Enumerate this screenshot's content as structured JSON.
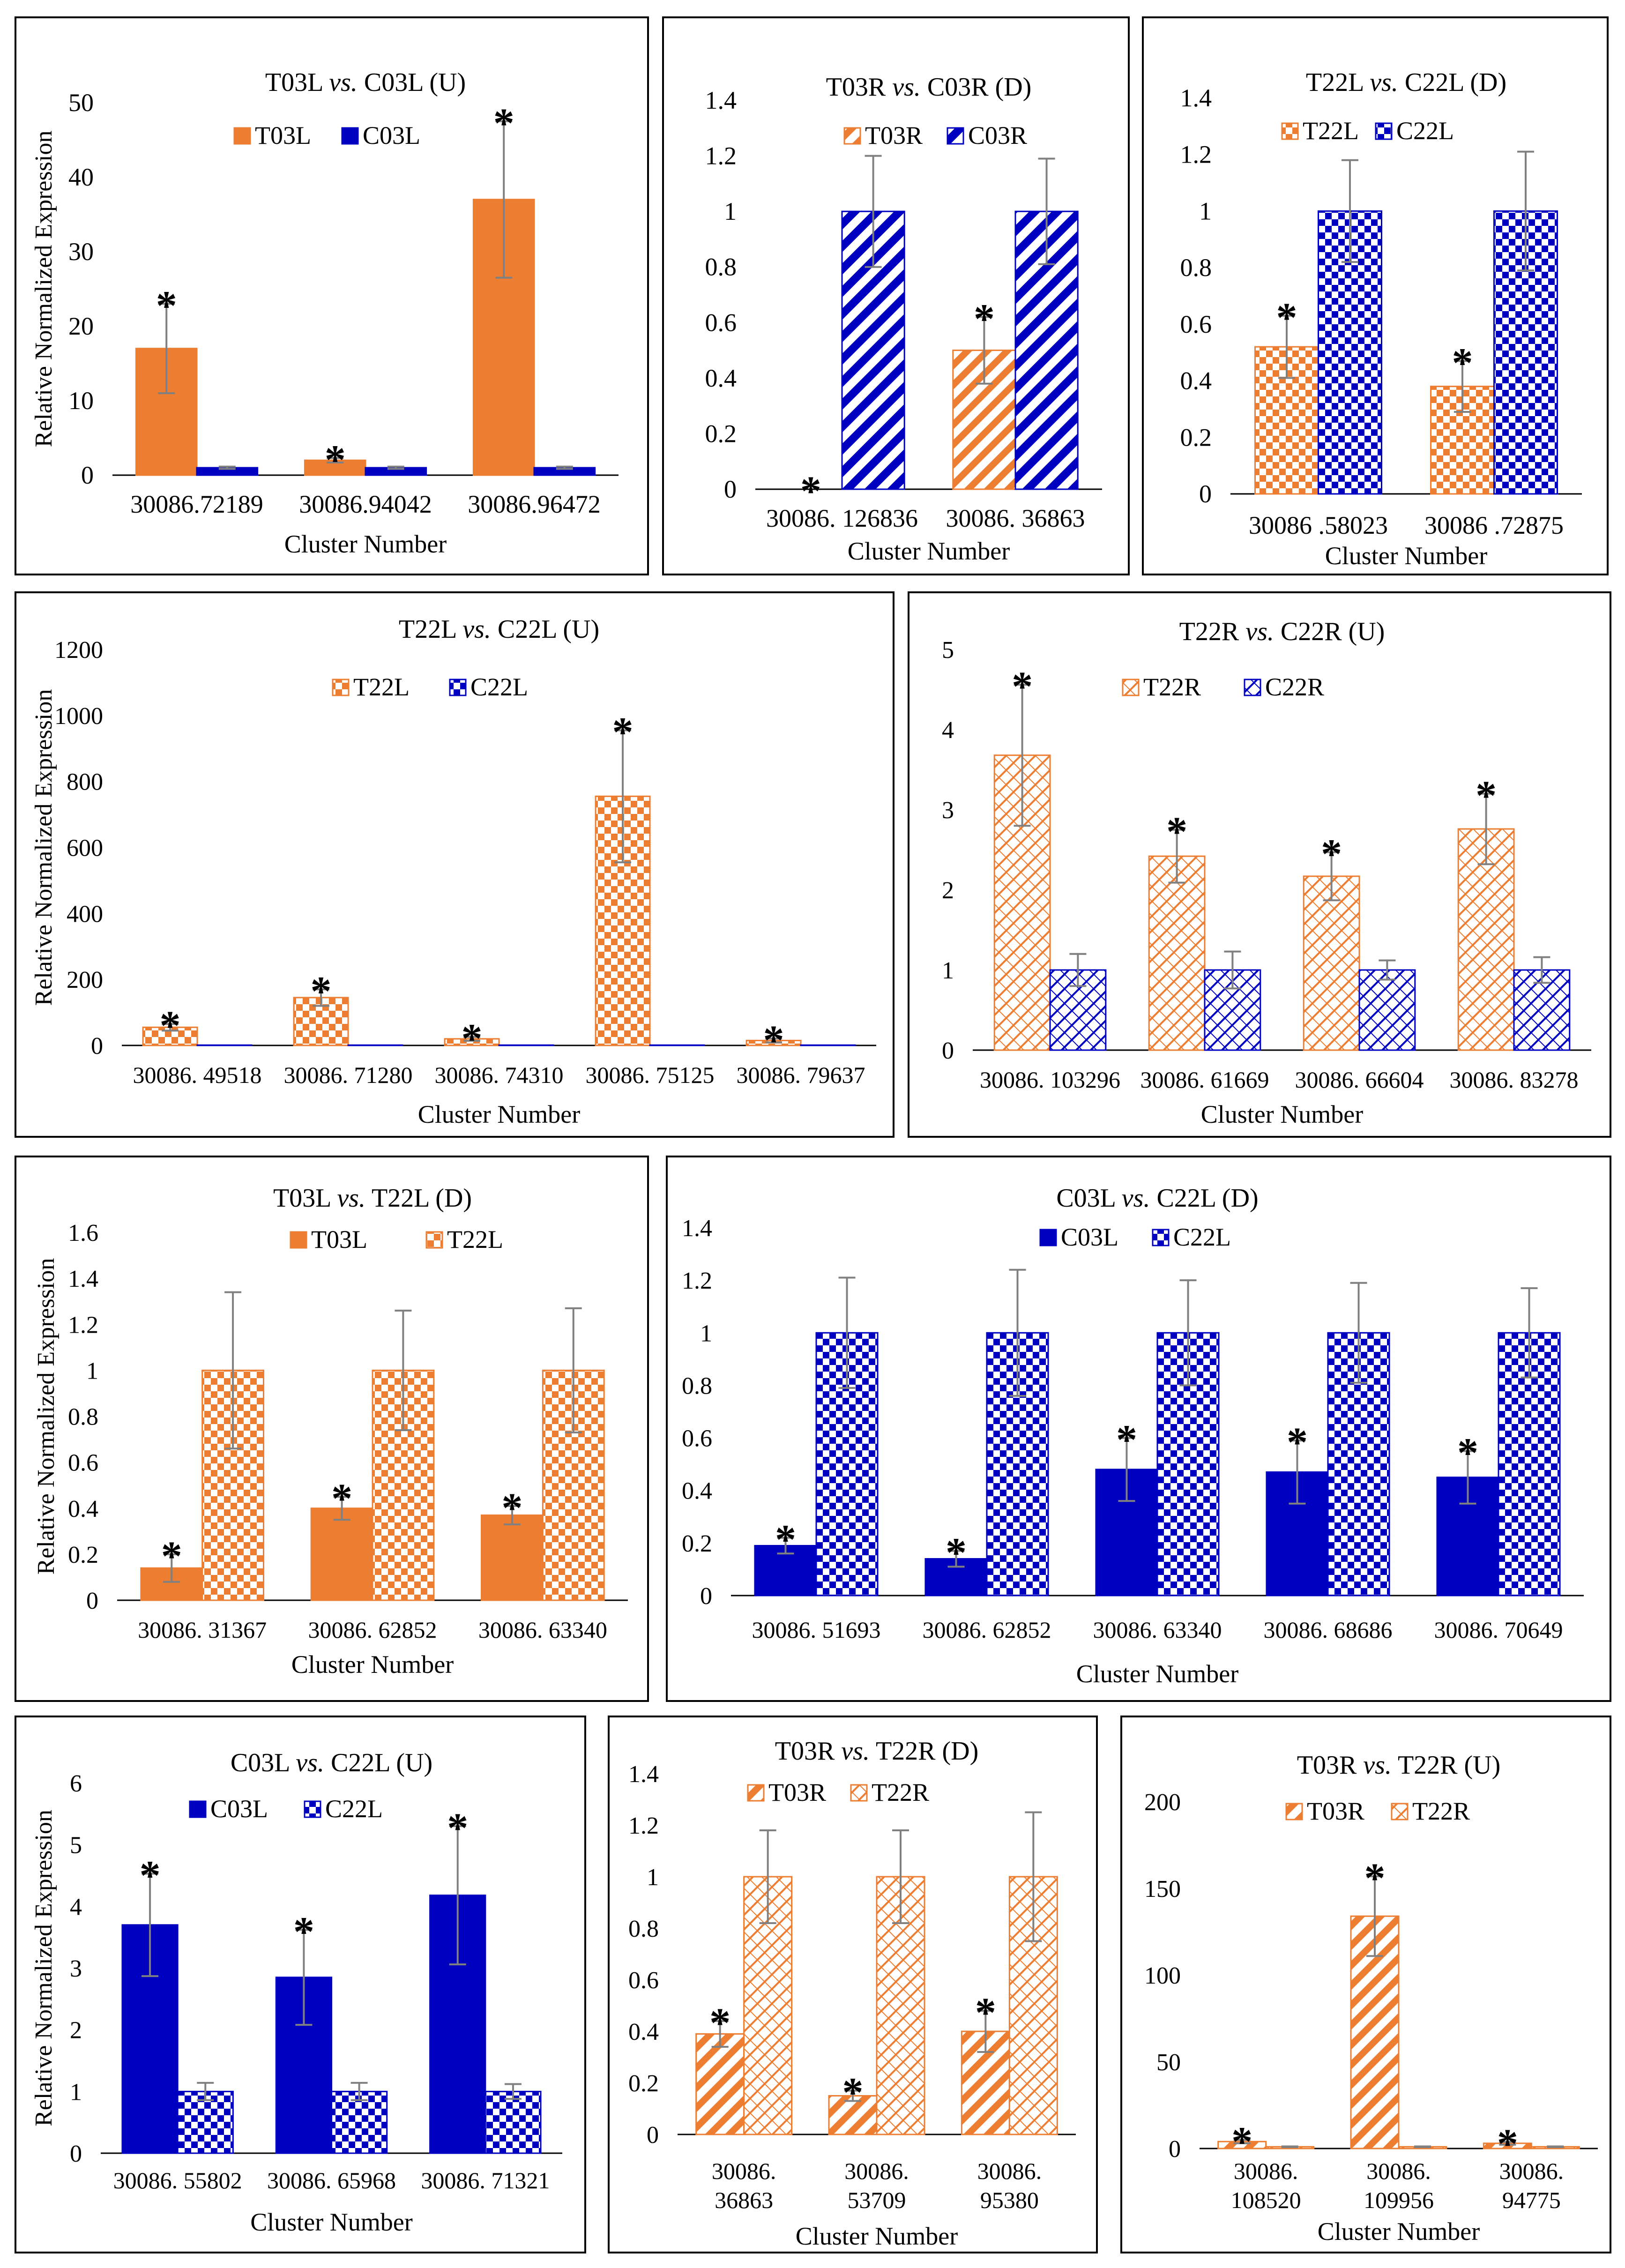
{
  "colors": {
    "orange": "#ED7D31",
    "blue": "#0000C0",
    "error_bar": "#808080"
  },
  "chart_data": [
    {
      "id": "p1",
      "type": "bar",
      "title": "T03L vs. C03L (U)",
      "ylabel": "Relative Normalized Expression",
      "xlabel": "Cluster Number",
      "ylim": [
        0,
        50
      ],
      "yticks": [
        "0",
        "10",
        "20",
        "30",
        "40",
        "50"
      ],
      "categories": [
        [
          "30086.72189"
        ],
        [
          "30086.94042"
        ],
        [
          "30086.96472"
        ]
      ],
      "series": [
        {
          "name": "T03L",
          "color": "orange",
          "pattern": "solid",
          "values": [
            17,
            2,
            37
          ],
          "errors": [
            6,
            0.3,
            10.5
          ],
          "significant": [
            true,
            true,
            true
          ]
        },
        {
          "name": "C03L",
          "color": "blue",
          "pattern": "solid",
          "values": [
            1,
            1,
            1
          ],
          "errors": [
            0.15,
            0.15,
            0.15
          ],
          "significant": [
            false,
            false,
            false
          ]
        }
      ]
    },
    {
      "id": "p2",
      "type": "bar",
      "title": "T03R vs. C03R (D)",
      "ylabel": "",
      "xlabel": "Cluster Number",
      "ylim": [
        0,
        1.4
      ],
      "yticks": [
        "0",
        "0.2",
        "0.4",
        "0.6",
        "0.8",
        "1",
        "1.2",
        "1.4"
      ],
      "categories": [
        [
          "30086. 126836"
        ],
        [
          "30086. 36863"
        ]
      ],
      "series": [
        {
          "name": "T03R",
          "color": "orange",
          "pattern": "diag-wide",
          "values": [
            0,
            0.5
          ],
          "errors": [
            0,
            0.12
          ],
          "significant": [
            true,
            true
          ]
        },
        {
          "name": "C03R",
          "color": "blue",
          "pattern": "diag-bold",
          "values": [
            1,
            1
          ],
          "errors": [
            0.2,
            0.19
          ],
          "significant": [
            false,
            false
          ]
        }
      ]
    },
    {
      "id": "p3",
      "type": "bar",
      "title": "T22L vs. C22L (D)",
      "ylabel": "",
      "xlabel": "Cluster Number",
      "ylim": [
        0,
        1.4
      ],
      "yticks": [
        "0",
        "0.2",
        "0.4",
        "0.6",
        "0.8",
        "1",
        "1.2",
        "1.4"
      ],
      "categories": [
        [
          "30086 .58023"
        ],
        [
          "30086 .72875"
        ]
      ],
      "series": [
        {
          "name": "T22L",
          "color": "orange",
          "pattern": "check",
          "values": [
            0.52,
            0.38
          ],
          "errors": [
            0.11,
            0.09
          ],
          "significant": [
            true,
            true
          ]
        },
        {
          "name": "C22L",
          "color": "blue",
          "pattern": "check",
          "values": [
            1,
            1
          ],
          "errors": [
            0.18,
            0.21
          ],
          "significant": [
            false,
            false
          ]
        }
      ]
    },
    {
      "id": "p4",
      "type": "bar",
      "title": "T22L vs. C22L (U)",
      "ylabel": "Relative Normalized Expression",
      "xlabel": "Cluster Number",
      "ylim": [
        0,
        1200
      ],
      "yticks": [
        "0",
        "200",
        "400",
        "600",
        "800",
        "1000",
        "1200"
      ],
      "categories": [
        [
          "30086. 49518"
        ],
        [
          "30086. 71280"
        ],
        [
          "30086. 74310"
        ],
        [
          "30086. 75125"
        ],
        [
          "30086. 79637"
        ]
      ],
      "series": [
        {
          "name": "T22L",
          "color": "orange",
          "pattern": "check",
          "values": [
            55,
            145,
            20,
            755,
            15
          ],
          "errors": [
            10,
            25,
            6,
            200,
            6
          ],
          "significant": [
            true,
            true,
            true,
            true,
            true
          ]
        },
        {
          "name": "C22L",
          "color": "blue",
          "pattern": "check",
          "values": [
            1,
            1,
            1,
            1,
            1
          ],
          "errors": [
            0,
            0,
            0,
            0,
            0
          ],
          "significant": [
            false,
            false,
            false,
            false,
            false
          ]
        }
      ]
    },
    {
      "id": "p5",
      "type": "bar",
      "title": "T22R vs. C22R (U)",
      "ylabel": "",
      "xlabel": "Cluster Number",
      "ylim": [
        0,
        5
      ],
      "yticks": [
        "0",
        "1",
        "2",
        "3",
        "4",
        "5"
      ],
      "categories": [
        [
          "30086. 103296"
        ],
        [
          "30086. 61669"
        ],
        [
          "30086. 66604"
        ],
        [
          "30086. 83278"
        ]
      ],
      "series": [
        {
          "name": "T22R",
          "color": "orange",
          "pattern": "diag-thin",
          "values": [
            3.68,
            2.42,
            2.17,
            2.76
          ],
          "errors": [
            0.88,
            0.33,
            0.3,
            0.44
          ],
          "significant": [
            true,
            true,
            true,
            true
          ]
        },
        {
          "name": "C22R",
          "color": "blue",
          "pattern": "diag-thin",
          "values": [
            1,
            1,
            1,
            1
          ],
          "errors": [
            0.2,
            0.23,
            0.12,
            0.16
          ],
          "significant": [
            false,
            false,
            false,
            false
          ]
        }
      ]
    },
    {
      "id": "p6",
      "type": "bar",
      "title": "T03L vs. T22L (D)",
      "ylabel": "Relative Normalized Expression",
      "xlabel": "Cluster Number",
      "ylim": [
        0,
        1.6
      ],
      "yticks": [
        "0",
        "0.2",
        "0.4",
        "0.6",
        "0.8",
        "1",
        "1.2",
        "1.4",
        "1.6"
      ],
      "categories": [
        [
          "30086. 31367"
        ],
        [
          "30086. 62852"
        ],
        [
          "30086. 63340"
        ]
      ],
      "series": [
        {
          "name": "T03L",
          "color": "orange",
          "pattern": "solid",
          "values": [
            0.14,
            0.4,
            0.37
          ],
          "errors": [
            0.06,
            0.05,
            0.04
          ],
          "significant": [
            true,
            true,
            true
          ]
        },
        {
          "name": "T22L",
          "color": "orange",
          "pattern": "check",
          "values": [
            1,
            1,
            1
          ],
          "errors": [
            0.34,
            0.26,
            0.27
          ],
          "significant": [
            false,
            false,
            false
          ]
        }
      ]
    },
    {
      "id": "p7",
      "type": "bar",
      "title": "C03L vs. C22L (D)",
      "ylabel": "",
      "xlabel": "Cluster Number",
      "ylim": [
        0,
        1.4
      ],
      "yticks": [
        "0",
        "0.2",
        "0.4",
        "0.6",
        "0.8",
        "1",
        "1.2",
        "1.4"
      ],
      "categories": [
        [
          "30086. 51693"
        ],
        [
          "30086. 62852"
        ],
        [
          "30086. 63340"
        ],
        [
          "30086. 68686"
        ],
        [
          "30086. 70649"
        ]
      ],
      "series": [
        {
          "name": "C03L",
          "color": "blue",
          "pattern": "solid",
          "values": [
            0.19,
            0.14,
            0.48,
            0.47,
            0.45
          ],
          "errors": [
            0.03,
            0.03,
            0.12,
            0.12,
            0.1
          ],
          "significant": [
            true,
            true,
            true,
            true,
            true
          ]
        },
        {
          "name": "C22L",
          "color": "blue",
          "pattern": "check",
          "values": [
            1,
            1,
            1,
            1,
            1
          ],
          "errors": [
            0.21,
            0.24,
            0.2,
            0.19,
            0.17
          ],
          "significant": [
            false,
            false,
            false,
            false,
            false
          ]
        }
      ]
    },
    {
      "id": "p8",
      "type": "bar",
      "title": "C03L vs. C22L (U)",
      "ylabel": "Relative Normalized Expression",
      "xlabel": "Cluster Number",
      "ylim": [
        0,
        6
      ],
      "yticks": [
        "0",
        "1",
        "2",
        "3",
        "4",
        "5",
        "6"
      ],
      "categories": [
        [
          "30086. 55802"
        ],
        [
          "30086. 65968"
        ],
        [
          "30086. 71321"
        ]
      ],
      "series": [
        {
          "name": "C03L",
          "color": "blue",
          "pattern": "solid",
          "values": [
            3.7,
            2.85,
            4.18
          ],
          "errors": [
            0.83,
            0.77,
            1.12
          ],
          "significant": [
            true,
            true,
            true
          ]
        },
        {
          "name": "C22L",
          "color": "blue",
          "pattern": "check",
          "values": [
            1,
            1,
            1
          ],
          "errors": [
            0.14,
            0.14,
            0.12
          ],
          "significant": [
            false,
            false,
            false
          ]
        }
      ]
    },
    {
      "id": "p9",
      "type": "bar",
      "title": "T03R vs. T22R (D)",
      "ylabel": "",
      "xlabel": "Cluster Number",
      "ylim": [
        0,
        1.4
      ],
      "yticks": [
        "0",
        "0.2",
        "0.4",
        "0.6",
        "0.8",
        "1",
        "1.2",
        "1.4"
      ],
      "categories": [
        [
          "30086.",
          "36863"
        ],
        [
          "30086.",
          "53709"
        ],
        [
          "30086.",
          "95380"
        ]
      ],
      "series": [
        {
          "name": "T03R",
          "color": "orange",
          "pattern": "diag-wide",
          "values": [
            0.39,
            0.15,
            0.4
          ],
          "errors": [
            0.05,
            0.02,
            0.08
          ],
          "significant": [
            true,
            true,
            true
          ]
        },
        {
          "name": "T22R",
          "color": "orange",
          "pattern": "diag-thin",
          "values": [
            1,
            1,
            1
          ],
          "errors": [
            0.18,
            0.18,
            0.25
          ],
          "significant": [
            false,
            false,
            false
          ]
        }
      ]
    },
    {
      "id": "p10",
      "type": "bar",
      "title": "T03R vs. T22R (U)",
      "ylabel": "",
      "xlabel": "Cluster Number",
      "ylim": [
        0,
        200
      ],
      "yticks": [
        "0",
        "50",
        "100",
        "150",
        "200"
      ],
      "categories": [
        [
          "30086.",
          "108520"
        ],
        [
          "30086.",
          "109956"
        ],
        [
          "30086.",
          "94775"
        ]
      ],
      "series": [
        {
          "name": "T03R",
          "color": "orange",
          "pattern": "diag-wide",
          "values": [
            4,
            134,
            3
          ],
          "errors": [
            1,
            23,
            0.8
          ],
          "significant": [
            true,
            true,
            true
          ]
        },
        {
          "name": "T22R",
          "color": "orange",
          "pattern": "diag-thin",
          "values": [
            1,
            1,
            1
          ],
          "errors": [
            0.2,
            0.2,
            0.2
          ],
          "significant": [
            false,
            false,
            false
          ]
        }
      ]
    }
  ]
}
